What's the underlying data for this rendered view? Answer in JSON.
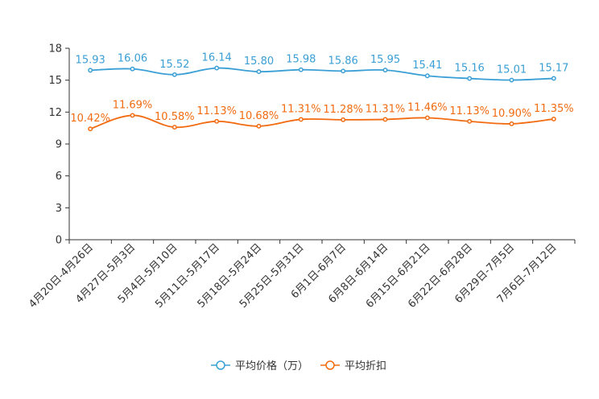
{
  "chart_data": {
    "type": "line",
    "categories": [
      "4月20日-4月26日",
      "4月27日-5月3日",
      "5月4日-5月10日",
      "5月11日-5月17日",
      "5月18日-5月24日",
      "5月25日-5月31日",
      "6月1日-6月7日",
      "6月8日-6月14日",
      "6月15日-6月21日",
      "6月22日-6月28日",
      "6月29日-7月5日",
      "7月6日-7月12日"
    ],
    "ylim": [
      0,
      18
    ],
    "yticks": [
      "0",
      "3",
      "6",
      "9",
      "12",
      "15",
      "18"
    ],
    "series": [
      {
        "name": "平均价格（万）",
        "color": "#3a9fd5",
        "values": [
          15.93,
          16.06,
          15.52,
          16.14,
          15.8,
          15.98,
          15.86,
          15.95,
          15.41,
          15.16,
          15.01,
          15.17
        ],
        "labels": [
          "15.93",
          "16.06",
          "15.52",
          "16.14",
          "15.80",
          "15.98",
          "15.86",
          "15.95",
          "15.41",
          "15.16",
          "15.01",
          "15.17"
        ]
      },
      {
        "name": "平均折扣",
        "color": "#f26b10",
        "values": [
          10.42,
          11.69,
          10.58,
          11.13,
          10.68,
          11.31,
          11.28,
          11.31,
          11.46,
          11.13,
          10.9,
          11.35
        ],
        "labels": [
          "10.42%",
          "11.69%",
          "10.58%",
          "11.13%",
          "10.68%",
          "11.31%",
          "11.28%",
          "11.31%",
          "11.46%",
          "11.13%",
          "10.90%",
          "11.35%"
        ]
      }
    ]
  }
}
